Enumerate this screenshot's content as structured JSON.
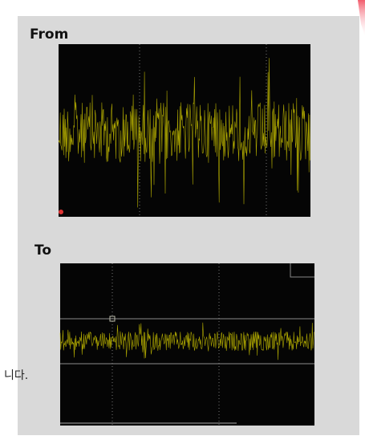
{
  "from_label": "From",
  "to_label": "To",
  "side_text": "니다."
}
